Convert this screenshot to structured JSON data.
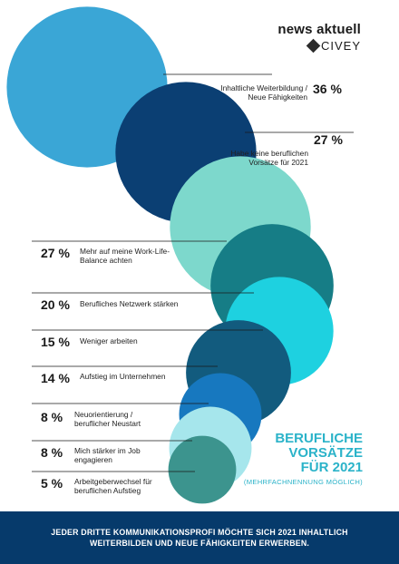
{
  "brand": {
    "name": "news aktuell",
    "partner": "CIVEY"
  },
  "headline": {
    "line1": "BERUFLICHE",
    "line2": "VORSÄTZE",
    "line3": "FÜR 2021",
    "note": "(MEHRFACHNENNUNG MÖGLICH)"
  },
  "footer": {
    "line1": "JEDER DRITTE KOMMUNIKATIONSPROFI MÖCHTE SICH 2021 INHALTLICH",
    "line2": "WEITERBILDEN UND NEUE FÄHIGKEITEN ERWERBEN."
  },
  "chart_data": {
    "type": "bubble",
    "unit": "%",
    "items": [
      {
        "label_line1": "Inhaltliche Weiterbildung /",
        "label_line2": "Neue Fähigkeiten",
        "value": 36,
        "value_label": "36 %",
        "color": "#3aa6d6"
      },
      {
        "label_line1": "Habe keine beruflichen",
        "label_line2": "Vorsätze für 2021",
        "value": 27,
        "value_label": "27 %",
        "color": "#0b3f73"
      },
      {
        "label_line1": "Mehr auf meine Work-Life-",
        "label_line2": "Balance achten",
        "value": 27,
        "value_label": "27 %",
        "color": "#7dd8cc"
      },
      {
        "label_line1": "Berufliches Netzwerk stärken",
        "label_line2": "",
        "value": 20,
        "value_label": "20 %",
        "color": "#167d86"
      },
      {
        "label_line1": "Weniger arbeiten",
        "label_line2": "",
        "value": 15,
        "value_label": "15 %",
        "color": "#1ed1e0"
      },
      {
        "label_line1": "Aufstieg im Unternehmen",
        "label_line2": "",
        "value": 14,
        "value_label": "14 %",
        "color": "#125b7e"
      },
      {
        "label_line1": "Neuorientierung /",
        "label_line2": "beruflicher Neustart",
        "value": 8,
        "value_label": "8 %",
        "color": "#1778bf"
      },
      {
        "label_line1": "Mich stärker im Job",
        "label_line2": "engagieren",
        "value": 8,
        "value_label": "8 %",
        "color": "#a6e6ec"
      },
      {
        "label_line1": "Arbeitgeberwechsel für",
        "label_line2": "beruflichen Aufstieg",
        "value": 5,
        "value_label": "5 %",
        "color": "#3c948e"
      }
    ]
  }
}
